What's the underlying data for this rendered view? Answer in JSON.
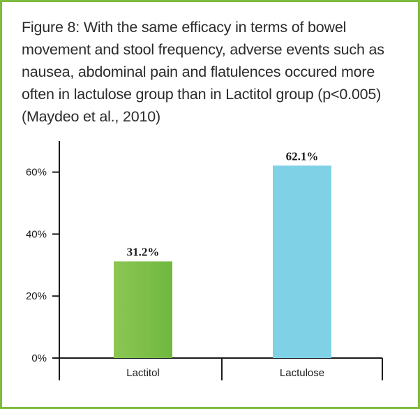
{
  "caption": "Figure 8: With the same efficacy in terms of bowel movement and stool frequency, adverse events such as nausea, abdominal pain and flatulences occured more often in lactulose group than in Lactitol group (p<0.005) (Maydeo et al., 2010)",
  "colors": {
    "frame": "#7dbb3e",
    "lactitol_bar_top": "#8cc654",
    "lactitol_bar_bottom": "#6fb83f",
    "lactulose_bar": "#7fd1e6",
    "axis": "#1a1a1a"
  },
  "chart_data": {
    "type": "bar",
    "categories": [
      "Lactitol",
      "Lactulose"
    ],
    "values": [
      31.2,
      62.1
    ],
    "data_labels": [
      "31.2%",
      "62.1%"
    ],
    "yticks": [
      0,
      20,
      40,
      60
    ],
    "ytick_labels": [
      "0%",
      "20%",
      "40%",
      "60%"
    ],
    "ylim": [
      0,
      70
    ],
    "title": "",
    "xlabel": "",
    "ylabel": "",
    "grid": false,
    "legend": "none"
  }
}
